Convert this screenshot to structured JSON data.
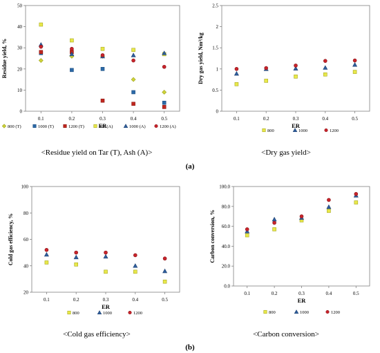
{
  "panel_labels": {
    "a": "(a)",
    "b": "(b)"
  },
  "marker_styles": {
    "800 (T)": {
      "shape": "diamond",
      "color": "#cfd33a",
      "stroke": "#9aa11a"
    },
    "1000 (T)": {
      "shape": "square",
      "color": "#2c6aa8",
      "stroke": "#1f4f80"
    },
    "1200 (T)": {
      "shape": "square",
      "color": "#c0271f",
      "stroke": "#8b1a14"
    },
    "800 (A)": {
      "shape": "square",
      "color": "#e8e84a",
      "stroke": "#a8a820"
    },
    "1000 (A)": {
      "shape": "triangle",
      "color": "#2f5f9e",
      "stroke": "#1d3f6e"
    },
    "1200 (A)": {
      "shape": "circle",
      "color": "#c8242b",
      "stroke": "#8a1419"
    },
    "800": {
      "shape": "square",
      "color": "#e8e84a",
      "stroke": "#a8a820"
    },
    "1000": {
      "shape": "triangle",
      "color": "#2f5f9e",
      "stroke": "#1d3f6e"
    },
    "1200": {
      "shape": "circle",
      "color": "#c8242b",
      "stroke": "#8a1419"
    }
  },
  "chart_data": [
    {
      "id": "residue",
      "type": "scatter",
      "caption": "<Residue yield on Tar (T), Ash (A)>",
      "xlabel": "ER",
      "ylabel": "Residue yield, %",
      "x": [
        0.1,
        0.2,
        0.3,
        0.4,
        0.5
      ],
      "x_ticks": [
        "0.1",
        "0.2",
        "0.3",
        "0.4",
        "0.5"
      ],
      "ylim": [
        0,
        50
      ],
      "y_ticks": [
        "0",
        "10",
        "20",
        "30",
        "40",
        "50"
      ],
      "grid": false,
      "legend_placement": "bottom",
      "series": [
        {
          "name": "800 (T)",
          "values": [
            24,
            26,
            26,
            15,
            9
          ]
        },
        {
          "name": "1000 (T)",
          "values": [
            27.5,
            19.5,
            20,
            9,
            4
          ]
        },
        {
          "name": "1200 (T)",
          "values": [
            28,
            28,
            5,
            3.5,
            2
          ]
        },
        {
          "name": "800 (A)",
          "values": [
            41,
            33.5,
            29.5,
            29,
            27
          ]
        },
        {
          "name": "1000 (A)",
          "values": [
            31.5,
            27,
            26,
            26.5,
            27.5
          ]
        },
        {
          "name": "1200 (A)",
          "values": [
            30.5,
            29.5,
            26.5,
            24,
            21
          ]
        }
      ]
    },
    {
      "id": "drygas",
      "type": "scatter",
      "caption": "<Dry gas yield>",
      "xlabel": "ER",
      "ylabel": "Dry gas yield, Nm³/kg",
      "x": [
        0.1,
        0.2,
        0.3,
        0.4,
        0.5
      ],
      "x_ticks": [
        "0.1",
        "0.2",
        "0.3",
        "0.4",
        "0.5"
      ],
      "ylim": [
        0,
        2.5
      ],
      "y_ticks": [
        "0",
        "0.5",
        "1",
        "1.5",
        "2",
        "2.5"
      ],
      "grid": false,
      "legend_placement": "bottom",
      "series": [
        {
          "name": "800",
          "values": [
            0.64,
            0.72,
            0.82,
            0.87,
            0.93
          ]
        },
        {
          "name": "1000",
          "values": [
            0.89,
            1.0,
            1.01,
            1.03,
            1.1
          ]
        },
        {
          "name": "1200",
          "values": [
            1.0,
            1.02,
            1.08,
            1.19,
            1.2
          ]
        }
      ]
    },
    {
      "id": "coldgas",
      "type": "scatter",
      "caption": "<Cold gas efficiency>",
      "xlabel": "ER",
      "ylabel": "Cold gas efficiency, %",
      "x": [
        0.1,
        0.2,
        0.3,
        0.4,
        0.5
      ],
      "x_ticks": [
        "0.1",
        "0.2",
        "0.3",
        "0.4",
        "0.5"
      ],
      "ylim": [
        20,
        100
      ],
      "y_ticks": [
        "20",
        "40",
        "60",
        "80",
        "100"
      ],
      "grid": false,
      "legend_placement": "bottom",
      "series": [
        {
          "name": "800",
          "values": [
            42.5,
            41,
            35.5,
            35.5,
            28
          ]
        },
        {
          "name": "1000",
          "values": [
            48.5,
            46.5,
            47,
            40,
            36
          ]
        },
        {
          "name": "1200",
          "values": [
            52,
            50,
            50,
            48,
            45.5
          ]
        }
      ]
    },
    {
      "id": "carbon",
      "type": "scatter",
      "caption": "<Carbon conversion>",
      "xlabel": "ER",
      "ylabel": "Carbon conversion, %",
      "x": [
        0.1,
        0.2,
        0.3,
        0.4,
        0.5
      ],
      "x_ticks": [
        "0.1",
        "0.2",
        "0.3",
        "0.4",
        "0.5"
      ],
      "ylim": [
        0,
        100
      ],
      "y_ticks": [
        "0.0",
        "20.0",
        "40.0",
        "60.0",
        "80.0",
        "100.0"
      ],
      "grid": false,
      "legend_placement": "bottom",
      "series": [
        {
          "name": "800",
          "values": [
            51,
            57,
            66,
            75.5,
            84
          ]
        },
        {
          "name": "1000",
          "values": [
            55,
            67,
            68.5,
            79.5,
            91
          ]
        },
        {
          "name": "1200",
          "values": [
            57,
            63.5,
            70,
            86.5,
            92.5
          ]
        }
      ]
    }
  ]
}
